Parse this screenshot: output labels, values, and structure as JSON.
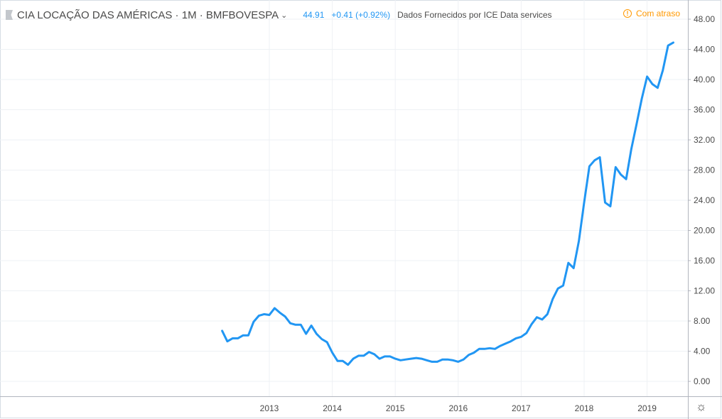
{
  "header": {
    "symbol_title": "CIA LOCAÇÃO DAS AMÉRICAS · 1M · BMFBOVESPA",
    "last_price": "44.91",
    "change": "+0.41 (+0.92%)",
    "provider": "Dados Fornecidos por ICE Data services",
    "delay_label": "Com atraso"
  },
  "colors": {
    "line": "#2196f3",
    "grid": "#eef1f4",
    "axis_text": "#4a4a4a",
    "delay": "#ff9800"
  },
  "chart_data": {
    "type": "line",
    "title": "CIA LOCAÇÃO DAS AMÉRICAS · 1M · BMFBOVESPA",
    "xlabel": "",
    "ylabel": "",
    "ylim": [
      0,
      48
    ],
    "y_ticks": [
      "0.00",
      "4.00",
      "8.00",
      "12.00",
      "16.00",
      "20.00",
      "24.00",
      "28.00",
      "32.00",
      "36.00",
      "40.00",
      "44.00",
      "48.00"
    ],
    "x_ticks": [
      "2013",
      "2014",
      "2015",
      "2016",
      "2017",
      "2018",
      "2019"
    ],
    "grid": true,
    "legend": "none",
    "series": [
      {
        "start": "2012-04",
        "frequency": "monthly",
        "values": [
          6.7,
          5.3,
          5.7,
          5.7,
          6.1,
          6.1,
          7.9,
          8.7,
          8.9,
          8.8,
          9.7,
          9.1,
          8.6,
          7.7,
          7.5,
          7.5,
          6.3,
          7.4,
          6.3,
          5.6,
          5.2,
          3.8,
          2.7,
          2.7,
          2.2,
          3.0,
          3.4,
          3.4,
          3.9,
          3.6,
          3.0,
          3.3,
          3.3,
          3.0,
          2.8,
          2.9,
          3.0,
          3.1,
          3.0,
          2.8,
          2.6,
          2.6,
          2.9,
          2.9,
          2.8,
          2.6,
          2.9,
          3.5,
          3.8,
          4.3,
          4.3,
          4.4,
          4.3,
          4.7,
          5.0,
          5.3,
          5.7,
          5.9,
          6.4,
          7.6,
          8.5,
          8.2,
          8.9,
          10.9,
          12.3,
          12.7,
          15.7,
          15.0,
          18.6,
          23.7,
          28.5,
          29.3,
          29.7,
          23.7,
          23.2,
          28.4,
          27.4,
          26.8,
          30.8,
          34.1,
          37.5,
          40.4,
          39.4,
          38.9,
          41.2,
          44.5,
          44.9
        ]
      }
    ]
  }
}
